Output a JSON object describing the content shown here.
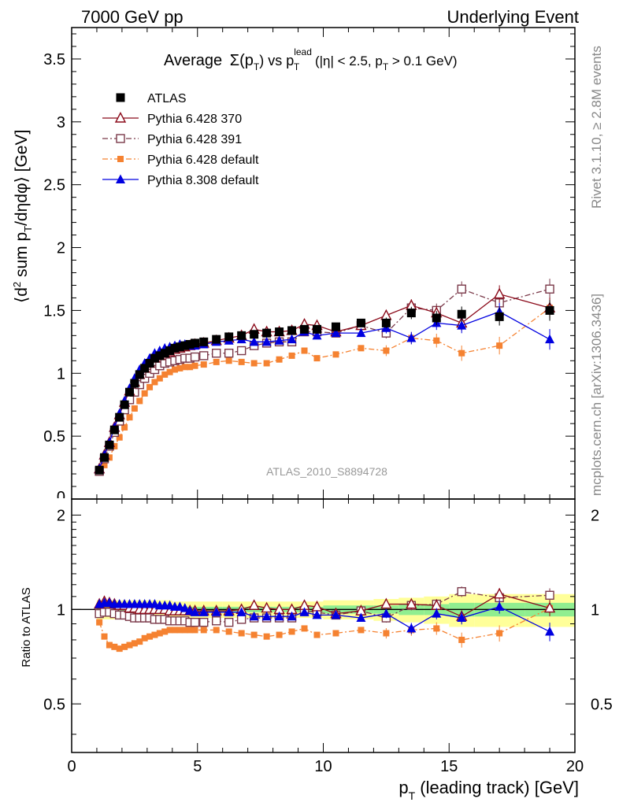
{
  "header": {
    "left": "7000 GeV pp",
    "right": "Underlying Event"
  },
  "side_labels": {
    "rivet": "Rivet 3.1.10, ≥ 2.8M events",
    "mcplots": "mcplots.cern.ch [arXiv:1306.3436]"
  },
  "chart_data": [
    {
      "type": "scatter",
      "title": "Average Σ(p_T) vs p_T^lead (|η| < 2.5, p_T > 0.1 GeV)",
      "title_parts": {
        "a": "Average",
        "sigma": "Σ(p",
        "sub_t": "T",
        "b": ")  vs  p",
        "sup_lead": "lead",
        "c": " (|η| < 2.5, p",
        "d": " > 0.1 GeV)"
      },
      "ylabel": "⟨d² sum p_T/dηdφ⟩ [GeV]",
      "ylabel_parts": {
        "a": "⟨d",
        "sup2": "2",
        "b": " sum p",
        "sub_t": "T",
        "c": "/dηdφ⟩ [GeV]"
      },
      "xlim": [
        0,
        20
      ],
      "ylim": [
        0,
        3.75
      ],
      "yticks": [
        "0.5",
        "1",
        "1.5",
        "2",
        "2.5",
        "3",
        "3.5"
      ],
      "ytick_values": [
        0.5,
        1,
        1.5,
        2,
        2.5,
        3,
        3.5
      ],
      "watermark": "ATLAS_2010_S8894728",
      "legend_position": "top-left",
      "legend": [
        "ATLAS",
        "Pythia 6.428 370",
        "Pythia 6.428 391",
        "Pythia 6.428 default",
        "Pythia 8.308 default"
      ],
      "series": [
        {
          "name": "ATLAS",
          "color": "#000000",
          "marker": "filled-square",
          "x": [
            1.1,
            1.3,
            1.5,
            1.7,
            1.9,
            2.1,
            2.3,
            2.5,
            2.7,
            2.9,
            3.1,
            3.3,
            3.5,
            3.7,
            3.9,
            4.1,
            4.3,
            4.5,
            4.7,
            4.9,
            5.25,
            5.75,
            6.25,
            6.75,
            7.25,
            7.75,
            8.25,
            8.75,
            9.25,
            9.75,
            10.5,
            11.5,
            12.5,
            13.5,
            14.5,
            15.5,
            17.0,
            19.0
          ],
          "y": [
            0.23,
            0.33,
            0.43,
            0.55,
            0.65,
            0.75,
            0.85,
            0.92,
            0.99,
            1.04,
            1.08,
            1.12,
            1.14,
            1.16,
            1.18,
            1.2,
            1.21,
            1.22,
            1.23,
            1.24,
            1.25,
            1.27,
            1.29,
            1.3,
            1.31,
            1.32,
            1.33,
            1.34,
            1.35,
            1.35,
            1.37,
            1.4,
            1.4,
            1.48,
            1.44,
            1.47,
            1.45,
            1.5
          ]
        },
        {
          "name": "Pythia 6.428 370",
          "color": "#8b0a1a",
          "marker": "open-triangle",
          "x": [
            1.1,
            1.3,
            1.5,
            1.7,
            1.9,
            2.1,
            2.3,
            2.5,
            2.7,
            2.9,
            3.1,
            3.3,
            3.5,
            3.7,
            3.9,
            4.1,
            4.3,
            4.5,
            4.7,
            4.9,
            5.25,
            5.75,
            6.25,
            6.75,
            7.25,
            7.75,
            8.25,
            8.75,
            9.25,
            9.75,
            10.5,
            11.5,
            12.5,
            13.5,
            14.5,
            15.5,
            17.0,
            19.0
          ],
          "y": [
            0.24,
            0.35,
            0.45,
            0.57,
            0.67,
            0.77,
            0.86,
            0.93,
            0.99,
            1.04,
            1.08,
            1.12,
            1.14,
            1.16,
            1.17,
            1.19,
            1.2,
            1.21,
            1.22,
            1.23,
            1.24,
            1.26,
            1.28,
            1.3,
            1.35,
            1.33,
            1.33,
            1.34,
            1.39,
            1.38,
            1.33,
            1.38,
            1.46,
            1.54,
            1.48,
            1.4,
            1.63,
            1.52
          ]
        },
        {
          "name": "Pythia 6.428 391",
          "color": "#7b3a4a",
          "marker": "open-square",
          "x": [
            1.1,
            1.3,
            1.5,
            1.7,
            1.9,
            2.1,
            2.3,
            2.5,
            2.7,
            2.9,
            3.1,
            3.3,
            3.5,
            3.7,
            3.9,
            4.1,
            4.3,
            4.5,
            4.7,
            4.9,
            5.25,
            5.75,
            6.25,
            6.75,
            7.25,
            7.75,
            8.25,
            8.75,
            9.25,
            9.75,
            10.5,
            11.5,
            12.5,
            13.5,
            14.5,
            15.5,
            17.0,
            19.0
          ],
          "y": [
            0.22,
            0.32,
            0.42,
            0.53,
            0.62,
            0.71,
            0.79,
            0.85,
            0.91,
            0.96,
            1.0,
            1.03,
            1.06,
            1.08,
            1.09,
            1.1,
            1.11,
            1.12,
            1.12,
            1.13,
            1.14,
            1.16,
            1.16,
            1.18,
            1.22,
            1.24,
            1.25,
            1.25,
            1.33,
            1.33,
            1.32,
            1.38,
            1.32,
            1.52,
            1.5,
            1.67,
            1.56,
            1.67
          ]
        },
        {
          "name": "Pythia 6.428 default",
          "color": "#f58231",
          "marker": "filled-square-small",
          "x": [
            1.1,
            1.3,
            1.5,
            1.7,
            1.9,
            2.1,
            2.3,
            2.5,
            2.7,
            2.9,
            3.1,
            3.3,
            3.5,
            3.7,
            3.9,
            4.1,
            4.3,
            4.5,
            4.7,
            4.9,
            5.25,
            5.75,
            6.25,
            6.75,
            7.25,
            7.75,
            8.25,
            8.75,
            9.25,
            9.75,
            10.5,
            11.5,
            12.5,
            13.5,
            14.5,
            15.5,
            17.0,
            19.0
          ],
          "y": [
            0.21,
            0.27,
            0.33,
            0.42,
            0.49,
            0.57,
            0.65,
            0.72,
            0.78,
            0.84,
            0.89,
            0.93,
            0.96,
            0.99,
            1.01,
            1.03,
            1.04,
            1.05,
            1.05,
            1.06,
            1.07,
            1.09,
            1.1,
            1.09,
            1.08,
            1.08,
            1.11,
            1.14,
            1.18,
            1.12,
            1.15,
            1.2,
            1.18,
            1.28,
            1.26,
            1.16,
            1.22,
            1.52
          ]
        },
        {
          "name": "Pythia 8.308 default",
          "color": "#0000e0",
          "marker": "filled-triangle",
          "x": [
            1.1,
            1.3,
            1.5,
            1.7,
            1.9,
            2.1,
            2.3,
            2.5,
            2.7,
            2.9,
            3.1,
            3.3,
            3.5,
            3.7,
            3.9,
            4.1,
            4.3,
            4.5,
            4.7,
            4.9,
            5.25,
            5.75,
            6.25,
            6.75,
            7.25,
            7.75,
            8.25,
            8.75,
            9.25,
            9.75,
            10.5,
            11.5,
            12.5,
            13.5,
            14.5,
            15.5,
            17.0,
            19.0
          ],
          "y": [
            0.24,
            0.35,
            0.45,
            0.57,
            0.68,
            0.78,
            0.88,
            0.96,
            1.03,
            1.08,
            1.12,
            1.16,
            1.18,
            1.2,
            1.21,
            1.22,
            1.23,
            1.23,
            1.22,
            1.22,
            1.23,
            1.25,
            1.26,
            1.27,
            1.25,
            1.25,
            1.26,
            1.27,
            1.33,
            1.3,
            1.32,
            1.32,
            1.36,
            1.28,
            1.4,
            1.38,
            1.49,
            1.27
          ]
        }
      ]
    },
    {
      "type": "scatter",
      "ylabel": "Ratio to ATLAS",
      "xlabel": "p_T (leading track) [GeV]",
      "xlabel_parts": {
        "a": "p",
        "sub_t": "T",
        "b": " (leading track) [GeV]"
      },
      "xlim": [
        0,
        20
      ],
      "ylim": [
        0.35,
        2.25
      ],
      "xticks": [
        "0",
        "5",
        "10",
        "15",
        "20"
      ],
      "xtick_values": [
        0,
        5,
        10,
        15,
        20
      ],
      "yticks": [
        "0.5",
        "1",
        "2"
      ],
      "ytick_values": [
        0.5,
        1,
        2
      ],
      "bands": {
        "stat_color": "#90ee90",
        "total_color": "#ffff99",
        "x_edges": [
          1.0,
          2.0,
          4.0,
          6.0,
          8.0,
          10.0,
          12.0,
          13.0,
          14.0,
          15.0,
          16.0,
          18.0,
          20.0
        ],
        "total_halfwidth": [
          0.07,
          0.07,
          0.06,
          0.06,
          0.06,
          0.07,
          0.08,
          0.09,
          0.1,
          0.12,
          0.12,
          0.12
        ],
        "stat_halfwidth": [
          0.03,
          0.02,
          0.02,
          0.02,
          0.02,
          0.03,
          0.03,
          0.04,
          0.04,
          0.05,
          0.05,
          0.05
        ]
      },
      "series": [
        {
          "name": "Pythia 6.428 370",
          "x": [
            1.1,
            1.3,
            1.5,
            1.7,
            1.9,
            2.1,
            2.3,
            2.5,
            2.7,
            2.9,
            3.1,
            3.3,
            3.5,
            3.7,
            3.9,
            4.1,
            4.3,
            4.5,
            4.7,
            4.9,
            5.25,
            5.75,
            6.25,
            6.75,
            7.25,
            7.75,
            8.25,
            8.75,
            9.25,
            9.75,
            10.5,
            11.5,
            12.5,
            13.5,
            14.5,
            15.5,
            17.0,
            19.0
          ],
          "y": [
            1.04,
            1.06,
            1.05,
            1.04,
            1.03,
            1.03,
            1.01,
            1.01,
            1.0,
            1.0,
            1.0,
            1.0,
            1.0,
            1.0,
            0.99,
            0.99,
            0.99,
            0.99,
            0.99,
            0.99,
            0.99,
            0.99,
            0.99,
            1.0,
            1.03,
            1.01,
            1.0,
            1.0,
            1.03,
            1.02,
            0.97,
            0.99,
            1.04,
            1.04,
            1.03,
            0.95,
            1.12,
            1.01
          ]
        },
        {
          "name": "Pythia 6.428 391",
          "x": [
            1.1,
            1.3,
            1.5,
            1.7,
            1.9,
            2.1,
            2.3,
            2.5,
            2.7,
            2.9,
            3.1,
            3.3,
            3.5,
            3.7,
            3.9,
            4.1,
            4.3,
            4.5,
            4.7,
            4.9,
            5.25,
            5.75,
            6.25,
            6.75,
            7.25,
            7.75,
            8.25,
            8.75,
            9.25,
            9.75,
            10.5,
            11.5,
            12.5,
            13.5,
            14.5,
            15.5,
            17.0,
            19.0
          ],
          "y": [
            0.97,
            0.98,
            0.98,
            0.97,
            0.96,
            0.96,
            0.95,
            0.94,
            0.94,
            0.94,
            0.94,
            0.93,
            0.93,
            0.93,
            0.92,
            0.92,
            0.92,
            0.92,
            0.91,
            0.91,
            0.91,
            0.92,
            0.91,
            0.93,
            0.94,
            0.94,
            0.94,
            0.94,
            0.99,
            0.98,
            0.96,
            0.99,
            0.94,
            1.03,
            1.04,
            1.14,
            1.09,
            1.11
          ]
        },
        {
          "name": "Pythia 6.428 default",
          "x": [
            1.1,
            1.3,
            1.5,
            1.7,
            1.9,
            2.1,
            2.3,
            2.5,
            2.7,
            2.9,
            3.1,
            3.3,
            3.5,
            3.7,
            3.9,
            4.1,
            4.3,
            4.5,
            4.7,
            4.9,
            5.25,
            5.75,
            6.25,
            6.75,
            7.25,
            7.75,
            8.25,
            8.75,
            9.25,
            9.75,
            10.5,
            11.5,
            12.5,
            13.5,
            14.5,
            15.5,
            17.0,
            19.0
          ],
          "y": [
            0.91,
            0.82,
            0.77,
            0.76,
            0.75,
            0.76,
            0.77,
            0.78,
            0.79,
            0.81,
            0.82,
            0.83,
            0.84,
            0.85,
            0.86,
            0.86,
            0.86,
            0.86,
            0.86,
            0.86,
            0.86,
            0.86,
            0.85,
            0.84,
            0.83,
            0.82,
            0.83,
            0.85,
            0.87,
            0.83,
            0.84,
            0.86,
            0.84,
            0.86,
            0.87,
            0.8,
            0.84,
            1.01
          ]
        },
        {
          "name": "Pythia 8.308 default",
          "x": [
            1.1,
            1.3,
            1.5,
            1.7,
            1.9,
            2.1,
            2.3,
            2.5,
            2.7,
            2.9,
            3.1,
            3.3,
            3.5,
            3.7,
            3.9,
            4.1,
            4.3,
            4.5,
            4.7,
            4.9,
            5.25,
            5.75,
            6.25,
            6.75,
            7.25,
            7.75,
            8.25,
            8.75,
            9.25,
            9.75,
            10.5,
            11.5,
            12.5,
            13.5,
            14.5,
            15.5,
            17.0,
            19.0
          ],
          "y": [
            1.04,
            1.05,
            1.05,
            1.04,
            1.04,
            1.04,
            1.04,
            1.04,
            1.04,
            1.04,
            1.04,
            1.04,
            1.03,
            1.03,
            1.03,
            1.02,
            1.02,
            1.01,
            0.99,
            0.98,
            0.98,
            0.98,
            0.98,
            0.98,
            0.95,
            0.95,
            0.95,
            0.95,
            0.98,
            0.96,
            0.96,
            0.94,
            0.97,
            0.87,
            0.97,
            0.94,
            1.02,
            0.85
          ]
        }
      ]
    }
  ]
}
